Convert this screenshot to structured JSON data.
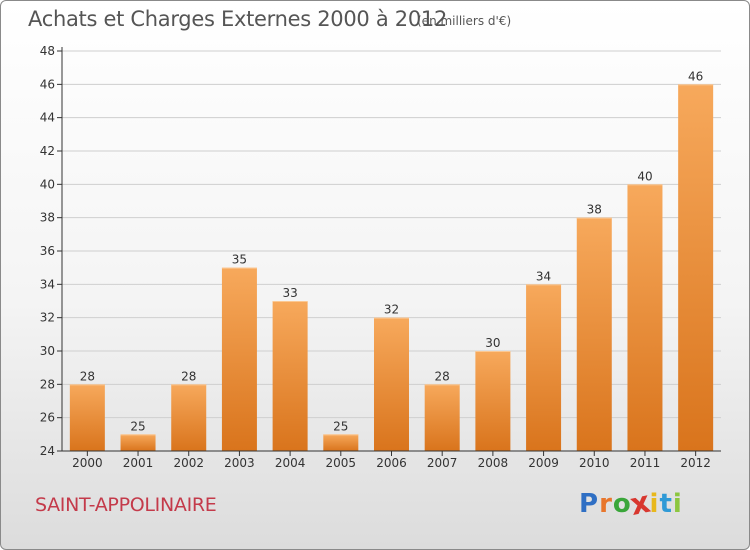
{
  "title": "Achats et Charges Externes 2000 à 2012",
  "subtitle": "(en milliers d'€)",
  "commune": "SAINT-APPOLINAIRE",
  "logo": {
    "letters": [
      "P",
      "r",
      "o",
      "x",
      "i",
      "t",
      "i"
    ],
    "colors": [
      "#2f6fc4",
      "#e8762c",
      "#3aa63a",
      "#d8372f",
      "#e8b81c",
      "#2f9ad6",
      "#8cc63f"
    ]
  },
  "colors": {
    "bar_top": "#f7a95c",
    "bar_bottom": "#d9741c",
    "axis": "#333333",
    "grid": "#cfcfcf",
    "title": "#555555",
    "commune": "#c43a4a"
  },
  "chart_data": {
    "type": "bar",
    "categories": [
      "2000",
      "2001",
      "2002",
      "2003",
      "2004",
      "2005",
      "2006",
      "2007",
      "2008",
      "2009",
      "2010",
      "2011",
      "2012"
    ],
    "values": [
      28,
      25,
      28,
      35,
      33,
      25,
      32,
      28,
      30,
      34,
      38,
      40,
      46
    ],
    "data_labels": [
      "28",
      "25",
      "28",
      "35",
      "33",
      "25",
      "32",
      "28",
      "30",
      "34",
      "38",
      "40",
      "46"
    ],
    "yticks": [
      "24",
      "26",
      "28",
      "30",
      "32",
      "34",
      "36",
      "38",
      "40",
      "42",
      "44",
      "46",
      "48"
    ],
    "ylim": [
      24,
      48
    ],
    "grid": true,
    "legend": "none"
  }
}
